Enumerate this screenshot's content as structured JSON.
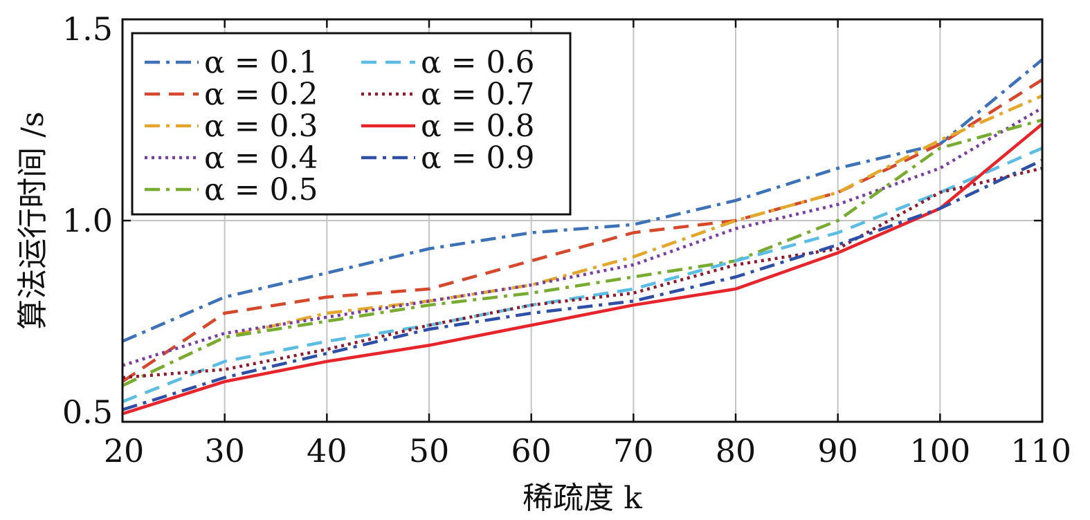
{
  "chart_data": {
    "type": "line",
    "x": [
      20,
      30,
      40,
      50,
      60,
      70,
      80,
      90,
      100,
      110
    ],
    "xlim": [
      20,
      110
    ],
    "ylim": [
      0.5,
      1.5
    ],
    "x_ticks": [
      "20",
      "30",
      "40",
      "50",
      "60",
      "70",
      "80",
      "90",
      "100",
      "110"
    ],
    "y_ticks": [
      "0.5",
      "1.0",
      "1.5"
    ],
    "xlabel": "稀疏度 k",
    "ylabel": "算法运行时间 /s",
    "grid": true,
    "legend_position": "top-left",
    "series": [
      {
        "name": "α = 0.1",
        "color": "#3D72B9",
        "dash": "dashdot",
        "values": [
          0.7,
          0.81,
          0.87,
          0.93,
          0.97,
          0.99,
          1.05,
          1.13,
          1.19,
          1.4
        ]
      },
      {
        "name": "α = 0.2",
        "color": "#D5482B",
        "dash": "dashed",
        "values": [
          0.6,
          0.77,
          0.81,
          0.83,
          0.9,
          0.97,
          1.0,
          1.07,
          1.19,
          1.35
        ]
      },
      {
        "name": "α = 0.3",
        "color": "#E3A82B",
        "dash": "dashdot",
        "values": [
          0.59,
          0.71,
          0.77,
          0.8,
          0.84,
          0.91,
          1.0,
          1.07,
          1.2,
          1.31
        ]
      },
      {
        "name": "α = 0.4",
        "color": "#7A3DA0",
        "dash": "dotted",
        "values": [
          0.64,
          0.72,
          0.76,
          0.8,
          0.84,
          0.89,
          0.98,
          1.04,
          1.13,
          1.28
        ]
      },
      {
        "name": "α = 0.5",
        "color": "#77AC30",
        "dash": "dashdot",
        "values": [
          0.59,
          0.71,
          0.75,
          0.79,
          0.82,
          0.86,
          0.9,
          1.0,
          1.18,
          1.25
        ]
      },
      {
        "name": "α = 0.6",
        "color": "#5BBDE3",
        "dash": "dashed",
        "values": [
          0.55,
          0.65,
          0.7,
          0.74,
          0.79,
          0.83,
          0.9,
          0.97,
          1.07,
          1.18
        ]
      },
      {
        "name": "α = 0.7",
        "color": "#8C1A2B",
        "dash": "dotted",
        "values": [
          0.61,
          0.63,
          0.68,
          0.74,
          0.79,
          0.82,
          0.89,
          0.93,
          1.07,
          1.13
        ]
      },
      {
        "name": "α = 0.8",
        "color": "#E8242B",
        "dash": "solid",
        "values": [
          0.52,
          0.6,
          0.65,
          0.69,
          0.74,
          0.79,
          0.83,
          0.92,
          1.03,
          1.24
        ]
      },
      {
        "name": "α = 0.9",
        "color": "#2E4FA8",
        "dash": "dashdot",
        "values": [
          0.53,
          0.61,
          0.67,
          0.73,
          0.77,
          0.8,
          0.86,
          0.94,
          1.03,
          1.15
        ]
      }
    ]
  }
}
